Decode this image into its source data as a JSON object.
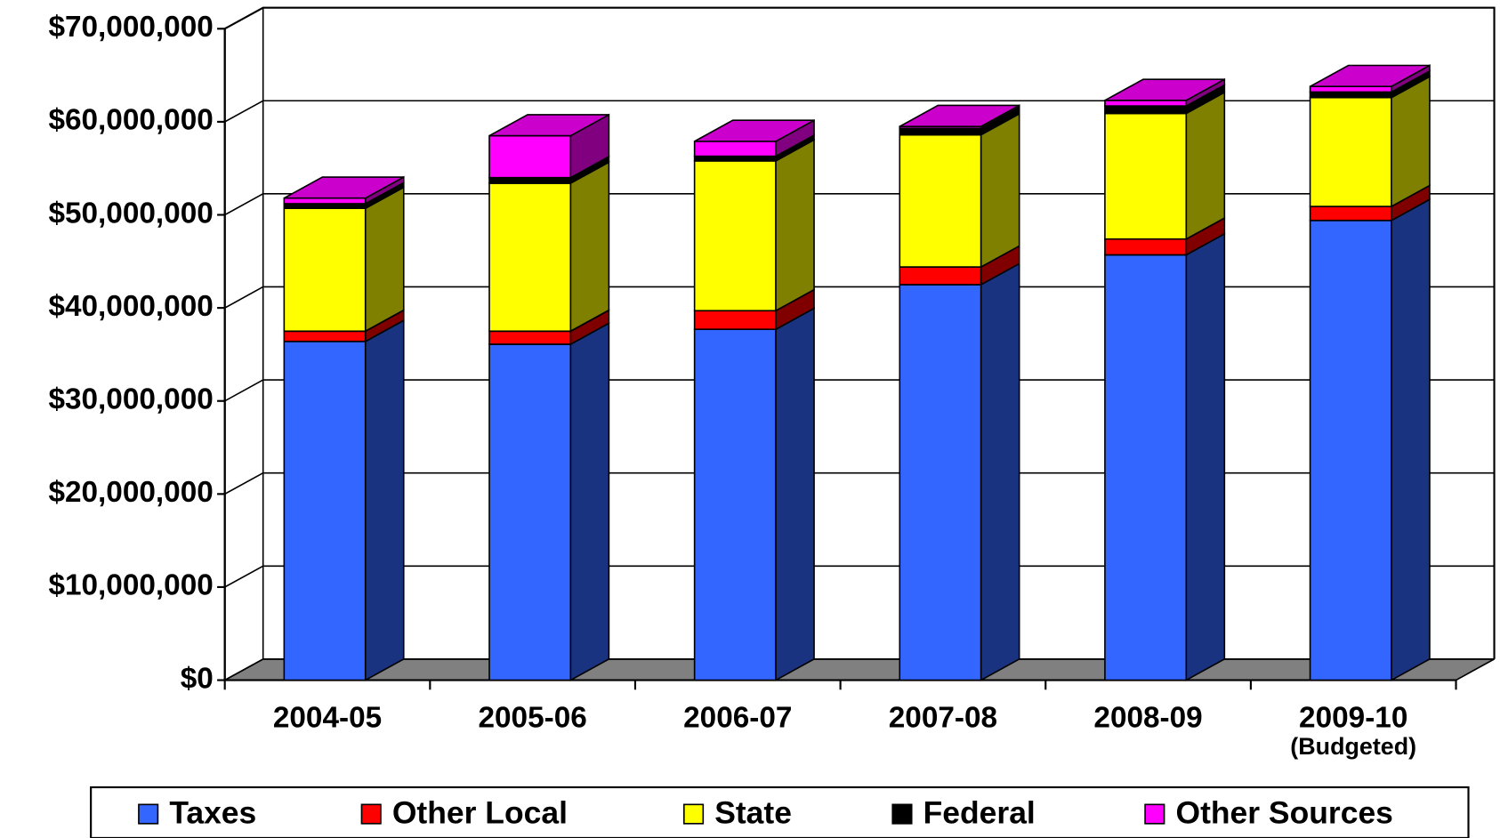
{
  "chart_data": {
    "type": "bar3d_stacked",
    "categories": [
      "2004-05",
      "2005-06",
      "2006-07",
      "2007-08",
      "2008-09",
      "2009-10\n(Budgeted)"
    ],
    "series": [
      {
        "name": "Taxes",
        "color": "#3366ff",
        "values": [
          36400000,
          36100000,
          37700000,
          42500000,
          45700000,
          49400000
        ]
      },
      {
        "name": "Other Local",
        "color": "#ff0000",
        "values": [
          1100000,
          1400000,
          2000000,
          1900000,
          1700000,
          1500000
        ]
      },
      {
        "name": "State",
        "color": "#ffff00",
        "values": [
          13200000,
          15900000,
          16100000,
          14200000,
          13500000,
          11700000
        ]
      },
      {
        "name": "Federal",
        "color": "#000000",
        "values": [
          500000,
          600000,
          500000,
          700000,
          800000,
          600000
        ]
      },
      {
        "name": "Other Sources",
        "color": "#ff00ff",
        "values": [
          600000,
          4500000,
          1600000,
          200000,
          600000,
          600000
        ]
      }
    ],
    "ylim": [
      0,
      70000000
    ],
    "yticks": [
      {
        "value": 0,
        "label": "$0"
      },
      {
        "value": 10000000,
        "label": "$10,000,000"
      },
      {
        "value": 20000000,
        "label": "$20,000,000"
      },
      {
        "value": 30000000,
        "label": "$30,000,000"
      },
      {
        "value": 40000000,
        "label": "$40,000,000"
      },
      {
        "value": 50000000,
        "label": "$50,000,000"
      },
      {
        "value": 60000000,
        "label": "$60,000,000"
      },
      {
        "value": 70000000,
        "label": "$70,000,000"
      }
    ],
    "grid": true,
    "legend": "bottom"
  }
}
